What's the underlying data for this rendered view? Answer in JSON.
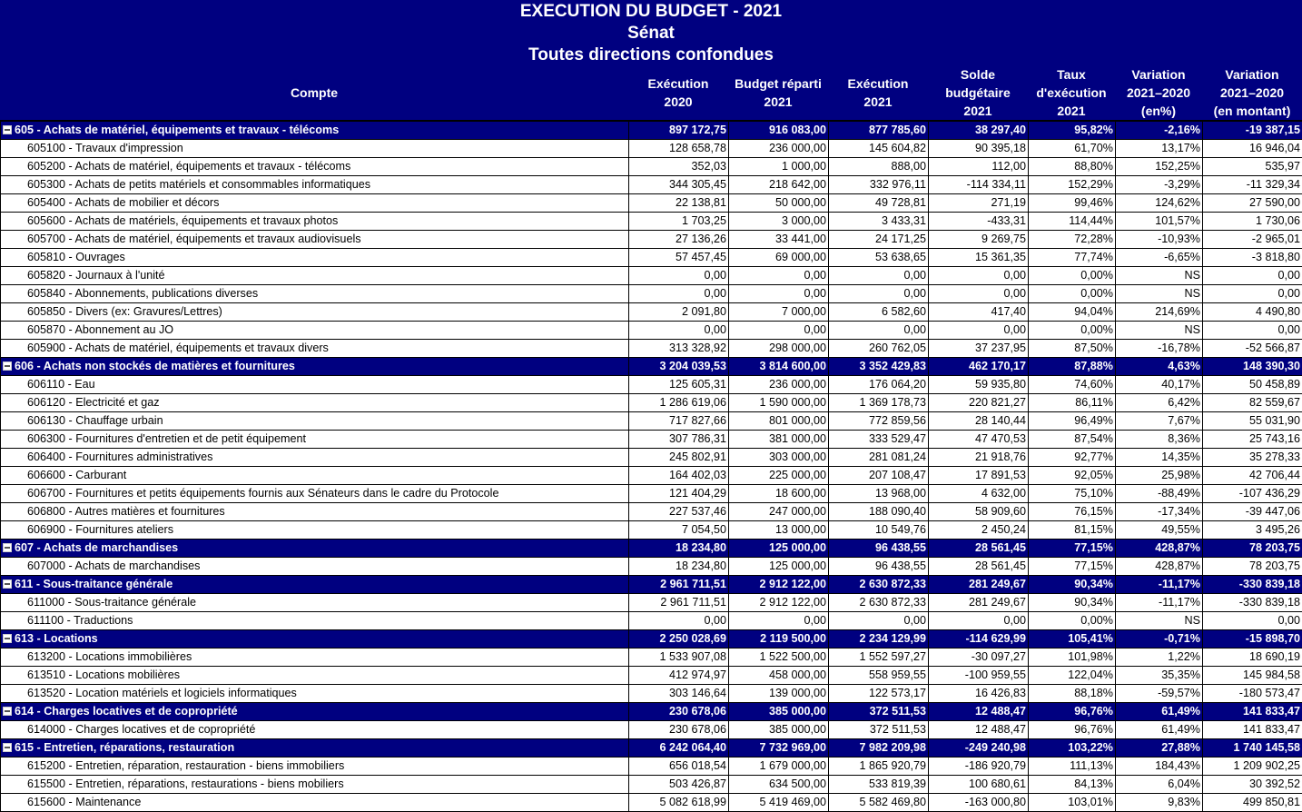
{
  "header": {
    "title": "EXECUTION DU BUDGET - 2021",
    "subtitle": "Sénat",
    "scope": "Toutes directions confondues",
    "columns": [
      "Compte",
      "Exécution\n2020",
      "Budget réparti\n2021",
      "Exécution\n2021",
      "Solde\nbudgétaire\n2021",
      "Taux\nd'exécution\n2021",
      "Variation\n2021–2020\n(en%)",
      "Variation\n2021–2020\n(en montant)"
    ]
  },
  "colors": {
    "header_bg": "#000080",
    "group_row_bg": "#000080",
    "group_text": "#ffffff"
  },
  "rows": [
    {
      "type": "group",
      "label": "605 - Achats de matériel, équipements et travaux - télécoms",
      "values": [
        "897 172,75",
        "916 083,00",
        "877 785,60",
        "38 297,40",
        "95,82%",
        "-2,16%",
        "-19 387,15"
      ]
    },
    {
      "type": "detail",
      "label": "605100 - Travaux d'impression",
      "values": [
        "128 658,78",
        "236 000,00",
        "145 604,82",
        "90 395,18",
        "61,70%",
        "13,17%",
        "16 946,04"
      ]
    },
    {
      "type": "detail",
      "label": "605200 - Achats de matériel, équipements et travaux - télécoms",
      "values": [
        "352,03",
        "1 000,00",
        "888,00",
        "112,00",
        "88,80%",
        "152,25%",
        "535,97"
      ]
    },
    {
      "type": "detail",
      "label": "605300 - Achats de petits matériels et consommables informatiques",
      "values": [
        "344 305,45",
        "218 642,00",
        "332 976,11",
        "-114 334,11",
        "152,29%",
        "-3,29%",
        "-11 329,34"
      ]
    },
    {
      "type": "detail",
      "label": "605400 - Achats de mobilier et décors",
      "values": [
        "22 138,81",
        "50 000,00",
        "49 728,81",
        "271,19",
        "99,46%",
        "124,62%",
        "27 590,00"
      ]
    },
    {
      "type": "detail",
      "label": "605600 - Achats de matériels, équipements et travaux photos",
      "values": [
        "1 703,25",
        "3 000,00",
        "3 433,31",
        "-433,31",
        "114,44%",
        "101,57%",
        "1 730,06"
      ]
    },
    {
      "type": "detail",
      "label": "605700 - Achats de matériel, équipements et travaux audiovisuels",
      "values": [
        "27 136,26",
        "33 441,00",
        "24 171,25",
        "9 269,75",
        "72,28%",
        "-10,93%",
        "-2 965,01"
      ]
    },
    {
      "type": "detail",
      "label": "605810 - Ouvrages",
      "values": [
        "57 457,45",
        "69 000,00",
        "53 638,65",
        "15 361,35",
        "77,74%",
        "-6,65%",
        "-3 818,80"
      ]
    },
    {
      "type": "detail",
      "label": "605820 - Journaux à l'unité",
      "values": [
        "0,00",
        "0,00",
        "0,00",
        "0,00",
        "0,00%",
        "NS",
        "0,00"
      ]
    },
    {
      "type": "detail",
      "label": "605840 - Abonnements, publications diverses",
      "values": [
        "0,00",
        "0,00",
        "0,00",
        "0,00",
        "0,00%",
        "NS",
        "0,00"
      ]
    },
    {
      "type": "detail",
      "label": "605850 - Divers (ex: Gravures/Lettres)",
      "values": [
        "2 091,80",
        "7 000,00",
        "6 582,60",
        "417,40",
        "94,04%",
        "214,69%",
        "4 490,80"
      ]
    },
    {
      "type": "detail",
      "label": "605870 - Abonnement au JO",
      "values": [
        "0,00",
        "0,00",
        "0,00",
        "0,00",
        "0,00%",
        "NS",
        "0,00"
      ]
    },
    {
      "type": "detail",
      "label": "605900 - Achats de matériel, équipements et travaux divers",
      "values": [
        "313 328,92",
        "298 000,00",
        "260 762,05",
        "37 237,95",
        "87,50%",
        "-16,78%",
        "-52 566,87"
      ]
    },
    {
      "type": "group",
      "label": "606 - Achats non stockés de matières et fournitures",
      "values": [
        "3 204 039,53",
        "3 814 600,00",
        "3 352 429,83",
        "462 170,17",
        "87,88%",
        "4,63%",
        "148 390,30"
      ]
    },
    {
      "type": "detail",
      "label": "606110 - Eau",
      "values": [
        "125 605,31",
        "236 000,00",
        "176 064,20",
        "59 935,80",
        "74,60%",
        "40,17%",
        "50 458,89"
      ]
    },
    {
      "type": "detail",
      "label": "606120 - Electricité et gaz",
      "values": [
        "1 286 619,06",
        "1 590 000,00",
        "1 369 178,73",
        "220 821,27",
        "86,11%",
        "6,42%",
        "82 559,67"
      ]
    },
    {
      "type": "detail",
      "label": "606130 - Chauffage urbain",
      "values": [
        "717 827,66",
        "801 000,00",
        "772 859,56",
        "28 140,44",
        "96,49%",
        "7,67%",
        "55 031,90"
      ]
    },
    {
      "type": "detail",
      "label": "606300 - Fournitures d'entretien et de petit équipement",
      "values": [
        "307 786,31",
        "381 000,00",
        "333 529,47",
        "47 470,53",
        "87,54%",
        "8,36%",
        "25 743,16"
      ]
    },
    {
      "type": "detail",
      "label": "606400 - Fournitures administratives",
      "values": [
        "245 802,91",
        "303 000,00",
        "281 081,24",
        "21 918,76",
        "92,77%",
        "14,35%",
        "35 278,33"
      ]
    },
    {
      "type": "detail",
      "label": "606600 - Carburant",
      "values": [
        "164 402,03",
        "225 000,00",
        "207 108,47",
        "17 891,53",
        "92,05%",
        "25,98%",
        "42 706,44"
      ]
    },
    {
      "type": "detail",
      "label": "606700 - Fournitures et petits équipements fournis aux Sénateurs dans le cadre du Protocole",
      "values": [
        "121 404,29",
        "18 600,00",
        "13 968,00",
        "4 632,00",
        "75,10%",
        "-88,49%",
        "-107 436,29"
      ]
    },
    {
      "type": "detail",
      "label": "606800 - Autres matières et fournitures",
      "values": [
        "227 537,46",
        "247 000,00",
        "188 090,40",
        "58 909,60",
        "76,15%",
        "-17,34%",
        "-39 447,06"
      ]
    },
    {
      "type": "detail",
      "label": "606900 - Fournitures ateliers",
      "values": [
        "7 054,50",
        "13 000,00",
        "10 549,76",
        "2 450,24",
        "81,15%",
        "49,55%",
        "3 495,26"
      ]
    },
    {
      "type": "group",
      "label": "607 - Achats de marchandises",
      "values": [
        "18 234,80",
        "125 000,00",
        "96 438,55",
        "28 561,45",
        "77,15%",
        "428,87%",
        "78 203,75"
      ]
    },
    {
      "type": "detail",
      "label": "607000 - Achats de marchandises",
      "values": [
        "18 234,80",
        "125 000,00",
        "96 438,55",
        "28 561,45",
        "77,15%",
        "428,87%",
        "78 203,75"
      ]
    },
    {
      "type": "group",
      "label": "611 - Sous-traitance générale",
      "values": [
        "2 961 711,51",
        "2 912 122,00",
        "2 630 872,33",
        "281 249,67",
        "90,34%",
        "-11,17%",
        "-330 839,18"
      ]
    },
    {
      "type": "detail",
      "label": "611000 - Sous-traitance générale",
      "values": [
        "2 961 711,51",
        "2 912 122,00",
        "2 630 872,33",
        "281 249,67",
        "90,34%",
        "-11,17%",
        "-330 839,18"
      ]
    },
    {
      "type": "detail",
      "label": "611100 - Traductions",
      "values": [
        "0,00",
        "0,00",
        "0,00",
        "0,00",
        "0,00%",
        "NS",
        "0,00"
      ]
    },
    {
      "type": "group",
      "label": "613 - Locations",
      "values": [
        "2 250 028,69",
        "2 119 500,00",
        "2 234 129,99",
        "-114 629,99",
        "105,41%",
        "-0,71%",
        "-15 898,70"
      ]
    },
    {
      "type": "detail",
      "label": "613200 - Locations immobilières",
      "values": [
        "1 533 907,08",
        "1 522 500,00",
        "1 552 597,27",
        "-30 097,27",
        "101,98%",
        "1,22%",
        "18 690,19"
      ]
    },
    {
      "type": "detail",
      "label": "613510 - Locations mobilières",
      "values": [
        "412 974,97",
        "458 000,00",
        "558 959,55",
        "-100 959,55",
        "122,04%",
        "35,35%",
        "145 984,58"
      ]
    },
    {
      "type": "detail",
      "label": "613520 - Location matériels et logiciels informatiques",
      "values": [
        "303 146,64",
        "139 000,00",
        "122 573,17",
        "16 426,83",
        "88,18%",
        "-59,57%",
        "-180 573,47"
      ]
    },
    {
      "type": "group",
      "label": "614 - Charges locatives et de copropriété",
      "values": [
        "230 678,06",
        "385 000,00",
        "372 511,53",
        "12 488,47",
        "96,76%",
        "61,49%",
        "141 833,47"
      ]
    },
    {
      "type": "detail",
      "label": "614000 - Charges locatives et de copropriété",
      "values": [
        "230 678,06",
        "385 000,00",
        "372 511,53",
        "12 488,47",
        "96,76%",
        "61,49%",
        "141 833,47"
      ]
    },
    {
      "type": "group",
      "label": "615 - Entretien, réparations, restauration",
      "values": [
        "6 242 064,40",
        "7 732 969,00",
        "7 982 209,98",
        "-249 240,98",
        "103,22%",
        "27,88%",
        "1 740 145,58"
      ]
    },
    {
      "type": "detail",
      "label": "615200 - Entretien, réparation, restauration - biens immobiliers",
      "values": [
        "656 018,54",
        "1 679 000,00",
        "1 865 920,79",
        "-186 920,79",
        "111,13%",
        "184,43%",
        "1 209 902,25"
      ]
    },
    {
      "type": "detail",
      "label": "615500 - Entretien, réparations, restaurations - biens mobiliers",
      "values": [
        "503 426,87",
        "634 500,00",
        "533 819,39",
        "100 680,61",
        "84,13%",
        "6,04%",
        "30 392,52"
      ]
    },
    {
      "type": "detail",
      "label": "615600 - Maintenance",
      "values": [
        "5 082 618,99",
        "5 419 469,00",
        "5 582 469,80",
        "-163 000,80",
        "103,01%",
        "9,83%",
        "499 850,81"
      ]
    }
  ]
}
